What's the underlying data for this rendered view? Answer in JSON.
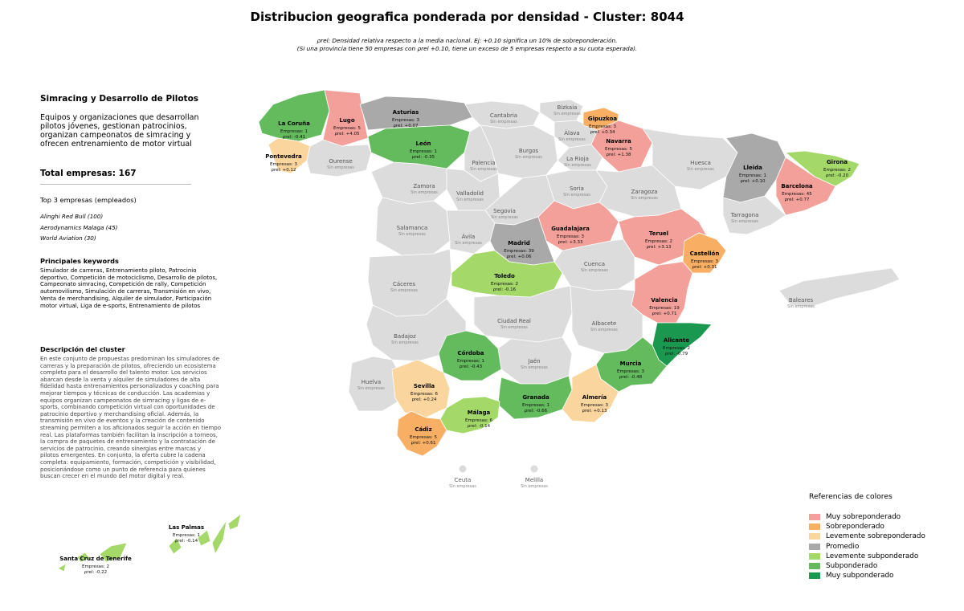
{
  "title": "Distribucion geografica ponderada por densidad - Cluster: 8044",
  "subtitle": {
    "line1": "ρrel: Densidad relativa respecto a la media nacional. Ej: +0.10 significa un 10% de sobreponderación.",
    "line2": "(Si una provincia tiene 50 empresas con ρrel +0.10, tiene un exceso de 5 empresas respecto a su cuota esperada)."
  },
  "sidebar": {
    "cluster_name": "Simracing y Desarrollo de Pilotos",
    "cluster_summary": "Equipos y organizaciones que desarrollan pilotos jóvenes, gestionan patrocinios, organizan campeonatos de simracing y ofrecen entrenamiento de motor virtual",
    "total_label": "Total empresas: 167",
    "top3_heading": "Top 3 empresas (empleados)",
    "top3": [
      "Alinghi Red Bull (100)",
      "Aerodynamics Malaga (45)",
      "World Aviation (30)"
    ],
    "keywords_heading": "Principales keywords",
    "keywords": "Simulador de carreras, Entrenamiento piloto, Patrocinio deportivo, Competición de motociclismo, Desarrollo de pilotos, Campeonato simracing, Competición de rally, Competición automovilismo, Simulación de carreras, Transmisión en vivo, Venta de merchandising, Alquiler de simulador, Participación motor virtual, Liga de e-sports, Entrenamiento de pilotos",
    "description_heading": "Descripción del cluster",
    "description": "En este conjunto de propuestas predominan los simuladores de carreras y la preparación de pilotos, ofreciendo un ecosistema completo para el desarrollo del talento motor. Los servicios abarcan desde la venta y alquiler de simuladores de alta fidelidad hasta entrenamientos personalizados y coaching para mejorar tiempos y técnicas de conducción. Las academias y equipos organizan campeonatos de simracing y ligas de e-sports, combinando competición virtual con oportunidades de patrocinio deportivo y merchandising oficial. Además, la transmisión en vivo de eventos y la creación de contenido streaming permiten a los aficionados seguir la acción en tiempo real. Las plataformas también facilitan la inscripción a torneos, la compra de paquetes de entrenamiento y la contratación de servicios de patrocinio, creando sinergias entre marcas y pilotos emergentes. En conjunto, la oferta cubre la cadena completa: equipamiento, formación, competición y visibilidad, posicionándose como un punto de referencia para quienes buscan crecer en el mundo del motor digital y real."
  },
  "legend": {
    "title": "Referencias de colores",
    "items": [
      {
        "label": "Muy sobreponderado",
        "color": "#F4A09A"
      },
      {
        "label": "Sobreponderado",
        "color": "#F8AF63"
      },
      {
        "label": "Levemente sobreponderado",
        "color": "#FBD59E"
      },
      {
        "label": "Promedio",
        "color": "#A9A9A9"
      },
      {
        "label": "Levemente subponderado",
        "color": "#A4D96A"
      },
      {
        "label": "Subponderado",
        "color": "#63BB5E"
      },
      {
        "label": "Muy subponderado",
        "color": "#1A9850"
      }
    ]
  },
  "map": {
    "none_label": "Sin empresas",
    "provinces_with_data": [
      {
        "name": "La Coruña",
        "cat": 5,
        "empresas": "Empresas: 1",
        "rho": "-0.41"
      },
      {
        "name": "Lugo",
        "cat": 0,
        "empresas": "Empresas: 5",
        "rho": "+4.05"
      },
      {
        "name": "Asturias",
        "cat": 3,
        "empresas": "Empresas: 3",
        "rho": "+0.07"
      },
      {
        "name": "Gipuzkoa",
        "cat": 1,
        "empresas": "Empresas: 3",
        "rho": "+0.34"
      },
      {
        "name": "Navarra",
        "cat": 0,
        "empresas": "Empresas: 5",
        "rho": "+1.38"
      },
      {
        "name": "Pontevedra",
        "cat": 2,
        "empresas": "Empresas: 3",
        "rho": "+0.12"
      },
      {
        "name": "León",
        "cat": 5,
        "empresas": "Empresas: 1",
        "rho": "-0.35"
      },
      {
        "name": "Lleida",
        "cat": 3,
        "empresas": "Empresas: 1",
        "rho": "+0.10"
      },
      {
        "name": "Girona",
        "cat": 4,
        "empresas": "Empresas: 2",
        "rho": "-0.20"
      },
      {
        "name": "Barcelona",
        "cat": 0,
        "empresas": "Empresas: 45",
        "rho": "+0.77"
      },
      {
        "name": "Guadalajara",
        "cat": 0,
        "empresas": "Empresas: 3",
        "rho": "+3.33"
      },
      {
        "name": "Teruel",
        "cat": 0,
        "empresas": "Empresas: 2",
        "rho": "+3.13"
      },
      {
        "name": "Madrid",
        "cat": 3,
        "empresas": "Empresas: 39",
        "rho": "+0.06"
      },
      {
        "name": "Castellón",
        "cat": 1,
        "empresas": "Empresas: 3",
        "rho": "+0.31"
      },
      {
        "name": "Toledo",
        "cat": 4,
        "empresas": "Empresas: 2",
        "rho": "-0.16"
      },
      {
        "name": "Valencia",
        "cat": 0,
        "empresas": "Empresas: 19",
        "rho": "+0.71"
      },
      {
        "name": "Alicante",
        "cat": 6,
        "empresas": "Empresas: 2",
        "rho": "-0.79"
      },
      {
        "name": "Córdoba",
        "cat": 5,
        "empresas": "Empresas: 1",
        "rho": "-0.43"
      },
      {
        "name": "Murcia",
        "cat": 5,
        "empresas": "Empresas: 3",
        "rho": "-0.48"
      },
      {
        "name": "Sevilla",
        "cat": 2,
        "empresas": "Empresas: 6",
        "rho": "+0.24"
      },
      {
        "name": "Granada",
        "cat": 5,
        "empresas": "Empresas: 1",
        "rho": "-0.66"
      },
      {
        "name": "Almería",
        "cat": 2,
        "empresas": "Empresas: 3",
        "rho": "+0.13"
      },
      {
        "name": "Málaga",
        "cat": 4,
        "empresas": "Empresas: 6",
        "rho": "-0.14"
      },
      {
        "name": "Cádiz",
        "cat": 1,
        "empresas": "Empresas: 5",
        "rho": "+0.61"
      },
      {
        "name": "Las Palmas",
        "cat": 4,
        "empresas": "Empresas: 1",
        "rho": "-0.14"
      },
      {
        "name": "Santa Cruz de Tenerife",
        "cat": 4,
        "empresas": "Empresas: 2",
        "rho": "-0.22"
      }
    ],
    "provinces_without_data": [
      "Cantabria",
      "Bizkaia",
      "Álava",
      "La Rioja",
      "Burgos",
      "Palencia",
      "Ourense",
      "Huesca",
      "Zamora",
      "Valladolid",
      "Soria",
      "Zaragoza",
      "Tarragona",
      "Segovia",
      "Salamanca",
      "Ávila",
      "Cuenca",
      "Cáceres",
      "Baleares",
      "Ciudad Real",
      "Albacete",
      "Badajoz",
      "Jaén",
      "Huelva",
      "Ceuta",
      "Melilla"
    ]
  }
}
